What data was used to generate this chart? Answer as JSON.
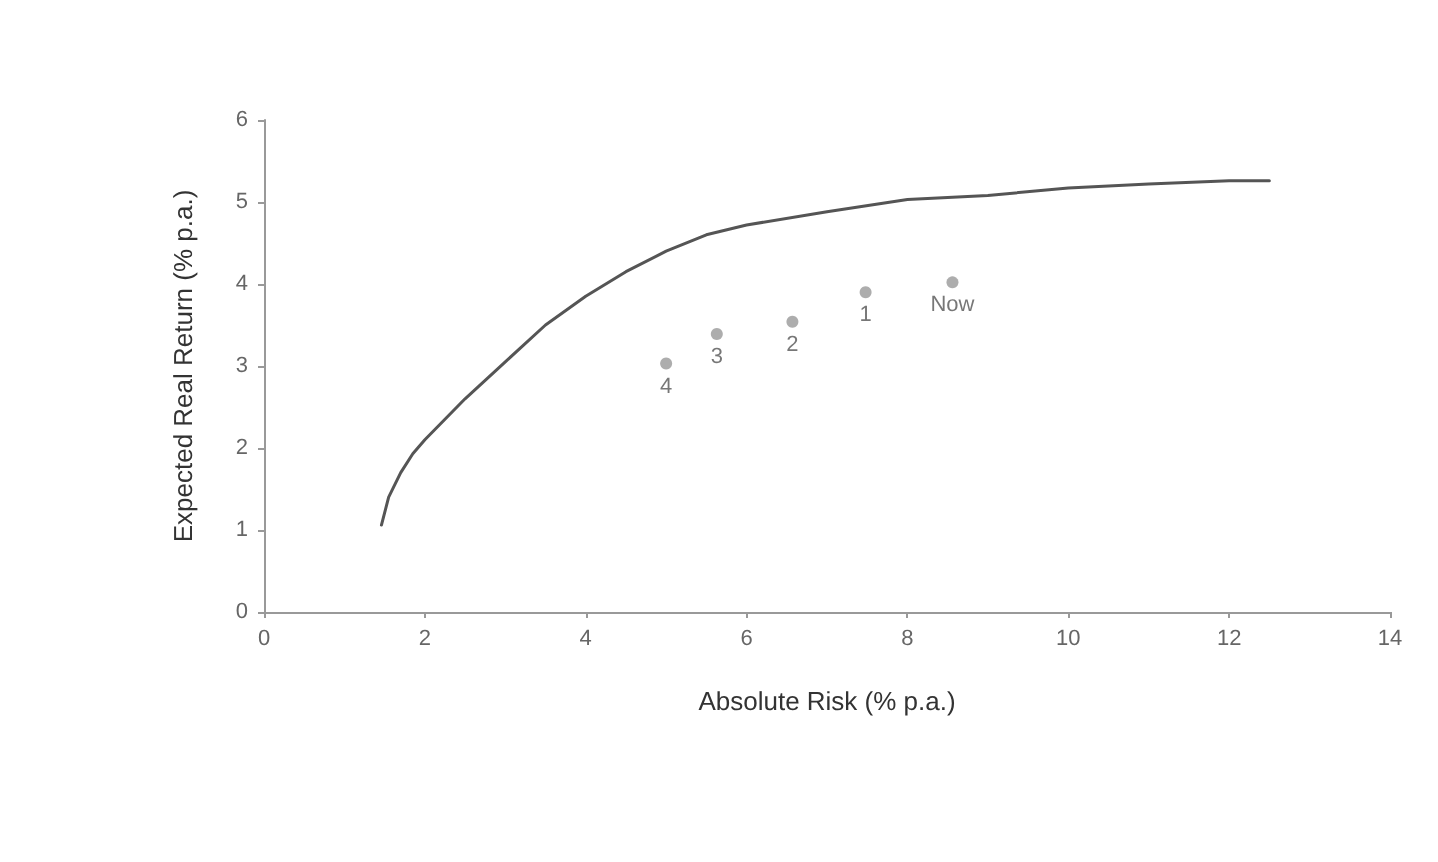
{
  "chart_data": {
    "type": "scatter",
    "xlabel": "Absolute Risk (% p.a.)",
    "ylabel": "Expected Real Return (% p.a.)",
    "xlim": [
      0,
      14
    ],
    "xticks": [
      0,
      2,
      4,
      6,
      8,
      10,
      12,
      14
    ],
    "ylim": [
      0,
      6
    ],
    "yticks": [
      0,
      1,
      2,
      3,
      4,
      5,
      6
    ],
    "grid": false,
    "series": [
      {
        "type": "line",
        "color": "#555555",
        "marker": "none",
        "line_style": "solid",
        "x": [
          1.46,
          1.55,
          1.7,
          1.85,
          2,
          2.5,
          3,
          3.5,
          4,
          4.5,
          5,
          5.5,
          6,
          7,
          8,
          9,
          10,
          11,
          12,
          12.5
        ],
        "values": [
          1.06,
          1.4,
          1.7,
          1.93,
          2.1,
          2.6,
          3.05,
          3.5,
          3.85,
          4.15,
          4.4,
          4.6,
          4.72,
          4.88,
          5.03,
          5.08,
          5.17,
          5.22,
          5.26,
          5.26
        ]
      },
      {
        "color": "#999999",
        "marker": "circle",
        "x": [
          5.0,
          5.63,
          6.57,
          7.48,
          8.56
        ],
        "values": [
          3.03,
          3.39,
          3.54,
          3.9,
          4.02
        ]
      }
    ],
    "annotations": [
      {
        "text": "4",
        "x": 5.0,
        "y": 3.03
      },
      {
        "text": "3",
        "x": 5.63,
        "y": 3.39
      },
      {
        "text": "2",
        "x": 6.57,
        "y": 3.54
      },
      {
        "text": "1",
        "x": 7.48,
        "y": 3.9
      },
      {
        "text": "Now",
        "x": 8.56,
        "y": 4.02
      }
    ]
  }
}
